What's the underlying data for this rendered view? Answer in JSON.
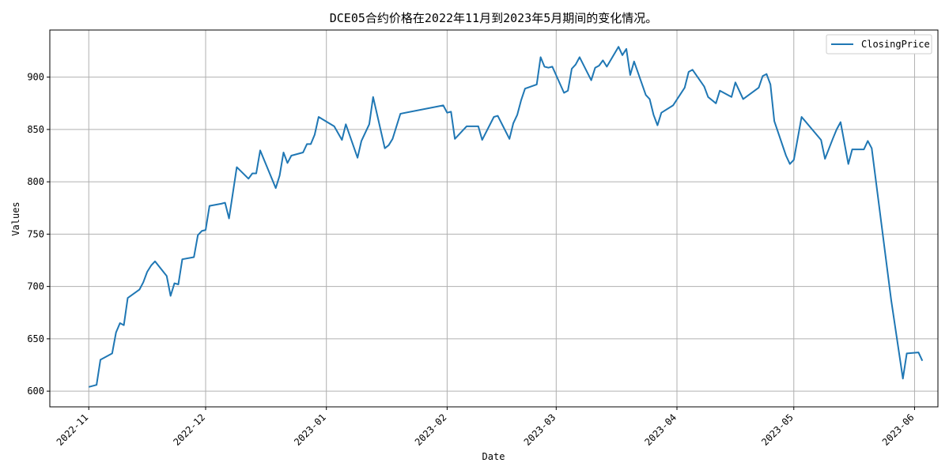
{
  "chart_data": {
    "type": "line",
    "title": "DCE05合约价格在2022年11月到2023年5月期间的变化情况。",
    "xlabel": "Date",
    "ylabel": "Values",
    "grid": true,
    "legend_position": "top-right",
    "xlim": [
      "2022-10-22",
      "2023-06-07"
    ],
    "ylim": [
      585,
      945
    ],
    "x_ticks": [
      "2022-11",
      "2022-12",
      "2023-01",
      "2023-02",
      "2023-03",
      "2023-04",
      "2023-05",
      "2023-06"
    ],
    "y_ticks": [
      600,
      650,
      700,
      750,
      800,
      850,
      900
    ],
    "series": [
      {
        "name": "ClosingPrice",
        "color": "#1f77b4",
        "points": [
          [
            "2022-11-01",
            604
          ],
          [
            "2022-11-03",
            606
          ],
          [
            "2022-11-04",
            630
          ],
          [
            "2022-11-07",
            636
          ],
          [
            "2022-11-08",
            656
          ],
          [
            "2022-11-09",
            665
          ],
          [
            "2022-11-10",
            663
          ],
          [
            "2022-11-11",
            689
          ],
          [
            "2022-11-14",
            697
          ],
          [
            "2022-11-15",
            704
          ],
          [
            "2022-11-16",
            714
          ],
          [
            "2022-11-17",
            720
          ],
          [
            "2022-11-18",
            724
          ],
          [
            "2022-11-21",
            710
          ],
          [
            "2022-11-22",
            691
          ],
          [
            "2022-11-23",
            703
          ],
          [
            "2022-11-24",
            702
          ],
          [
            "2022-11-25",
            726
          ],
          [
            "2022-11-28",
            728
          ],
          [
            "2022-11-29",
            749
          ],
          [
            "2022-11-30",
            753
          ],
          [
            "2022-12-01",
            754
          ],
          [
            "2022-12-02",
            777
          ],
          [
            "2022-12-05",
            779
          ],
          [
            "2022-12-06",
            780
          ],
          [
            "2022-12-07",
            765
          ],
          [
            "2022-12-09",
            814
          ],
          [
            "2022-12-12",
            803
          ],
          [
            "2022-12-13",
            808
          ],
          [
            "2022-12-14",
            808
          ],
          [
            "2022-12-15",
            830
          ],
          [
            "2022-12-19",
            794
          ],
          [
            "2022-12-20",
            806
          ],
          [
            "2022-12-21",
            828
          ],
          [
            "2022-12-22",
            818
          ],
          [
            "2022-12-23",
            825
          ],
          [
            "2022-12-26",
            828
          ],
          [
            "2022-12-27",
            836
          ],
          [
            "2022-12-28",
            836
          ],
          [
            "2022-12-29",
            845
          ],
          [
            "2022-12-30",
            862
          ],
          [
            "2023-01-03",
            853
          ],
          [
            "2023-01-05",
            840
          ],
          [
            "2023-01-06",
            855
          ],
          [
            "2023-01-09",
            823
          ],
          [
            "2023-01-10",
            839
          ],
          [
            "2023-01-12",
            855
          ],
          [
            "2023-01-13",
            881
          ],
          [
            "2023-01-16",
            832
          ],
          [
            "2023-01-17",
            835
          ],
          [
            "2023-01-18",
            841
          ],
          [
            "2023-01-20",
            865
          ],
          [
            "2023-01-31",
            873
          ],
          [
            "2023-02-01",
            866
          ],
          [
            "2023-02-02",
            867
          ],
          [
            "2023-02-03",
            841
          ],
          [
            "2023-02-06",
            853
          ],
          [
            "2023-02-07",
            853
          ],
          [
            "2023-02-08",
            853
          ],
          [
            "2023-02-09",
            853
          ],
          [
            "2023-02-10",
            840
          ],
          [
            "2023-02-13",
            862
          ],
          [
            "2023-02-14",
            863
          ],
          [
            "2023-02-17",
            841
          ],
          [
            "2023-02-18",
            856
          ],
          [
            "2023-02-19",
            864
          ],
          [
            "2023-02-20",
            878
          ],
          [
            "2023-02-21",
            889
          ],
          [
            "2023-02-24",
            893
          ],
          [
            "2023-02-25",
            919
          ],
          [
            "2023-02-26",
            910
          ],
          [
            "2023-02-27",
            909
          ],
          [
            "2023-02-28",
            910
          ],
          [
            "2023-03-03",
            885
          ],
          [
            "2023-03-04",
            887
          ],
          [
            "2023-03-05",
            908
          ],
          [
            "2023-03-06",
            912
          ],
          [
            "2023-03-07",
            919
          ],
          [
            "2023-03-10",
            897
          ],
          [
            "2023-03-11",
            909
          ],
          [
            "2023-03-12",
            911
          ],
          [
            "2023-03-13",
            916
          ],
          [
            "2023-03-14",
            910
          ],
          [
            "2023-03-17",
            929
          ],
          [
            "2023-03-18",
            921
          ],
          [
            "2023-03-19",
            927
          ],
          [
            "2023-03-20",
            902
          ],
          [
            "2023-03-21",
            915
          ],
          [
            "2023-03-24",
            883
          ],
          [
            "2023-03-25",
            879
          ],
          [
            "2023-03-26",
            864
          ],
          [
            "2023-03-27",
            854
          ],
          [
            "2023-03-28",
            866
          ],
          [
            "2023-03-31",
            873
          ],
          [
            "2023-04-03",
            890
          ],
          [
            "2023-04-04",
            905
          ],
          [
            "2023-04-05",
            907
          ],
          [
            "2023-04-08",
            891
          ],
          [
            "2023-04-09",
            881
          ],
          [
            "2023-04-11",
            875
          ],
          [
            "2023-04-12",
            887
          ],
          [
            "2023-04-15",
            881
          ],
          [
            "2023-04-16",
            895
          ],
          [
            "2023-04-18",
            879
          ],
          [
            "2023-04-22",
            890
          ],
          [
            "2023-04-23",
            901
          ],
          [
            "2023-04-24",
            903
          ],
          [
            "2023-04-25",
            893
          ],
          [
            "2023-04-26",
            858
          ],
          [
            "2023-04-29",
            825
          ],
          [
            "2023-04-30",
            817
          ],
          [
            "2023-05-01",
            821
          ],
          [
            "2023-05-03",
            862
          ],
          [
            "2023-05-08",
            840
          ],
          [
            "2023-05-09",
            822
          ],
          [
            "2023-05-11",
            841
          ],
          [
            "2023-05-12",
            850
          ],
          [
            "2023-05-13",
            857
          ],
          [
            "2023-05-15",
            817
          ],
          [
            "2023-05-16",
            831
          ],
          [
            "2023-05-19",
            831
          ],
          [
            "2023-05-20",
            839
          ],
          [
            "2023-05-21",
            832
          ],
          [
            "2023-05-26",
            687
          ],
          [
            "2023-05-29",
            612
          ],
          [
            "2023-05-30",
            636
          ],
          [
            "2023-06-02",
            637
          ],
          [
            "2023-06-03",
            629
          ]
        ]
      }
    ]
  }
}
